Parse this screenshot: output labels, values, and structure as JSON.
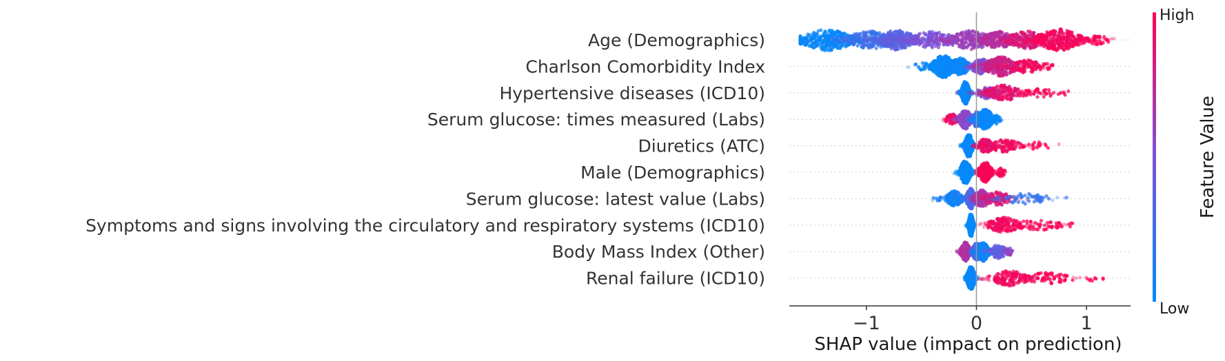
{
  "chart_data": {
    "type": "scatter",
    "subtype": "shap-beeswarm",
    "title": "",
    "xlabel": "SHAP value (impact on prediction)",
    "ylabel": "",
    "xlim": [
      -1.7,
      1.4
    ],
    "xticks": [
      -1,
      0,
      1
    ],
    "xtick_labels": [
      "−1",
      "0",
      "1"
    ],
    "zero_line": true,
    "grid": false,
    "colorbar": {
      "title": "Feature Value",
      "high_label": "High",
      "low_label": "Low",
      "low_color": "#008bfb",
      "mid_color": "#7c52d8",
      "high_color": "#ff0052"
    },
    "features": [
      {
        "name": "Age (Demographics)",
        "range": [
          -1.6,
          1.25
        ],
        "clusters": [
          {
            "center": -1.35,
            "spread": 0.17,
            "count": 320,
            "value": 0.03
          },
          {
            "center": -0.95,
            "spread": 0.17,
            "count": 230,
            "value": 0.22
          },
          {
            "center": -0.72,
            "spread": 0.12,
            "count": 280,
            "value": 0.36
          },
          {
            "center": -0.4,
            "spread": 0.16,
            "count": 180,
            "value": 0.5
          },
          {
            "center": -0.05,
            "spread": 0.15,
            "count": 240,
            "value": 0.62
          },
          {
            "center": 0.2,
            "spread": 0.1,
            "count": 200,
            "value": 0.72
          },
          {
            "center": 0.45,
            "spread": 0.12,
            "count": 220,
            "value": 0.85
          },
          {
            "center": 0.75,
            "spread": 0.14,
            "count": 340,
            "value": 0.96
          },
          {
            "center": 1.1,
            "spread": 0.07,
            "count": 40,
            "value": 1.0
          }
        ]
      },
      {
        "name": "Charlson Comorbidity Index",
        "range": [
          -0.62,
          0.72
        ],
        "clusters": [
          {
            "center": -0.3,
            "spread": 0.07,
            "count": 380,
            "value": 0.02
          },
          {
            "center": -0.15,
            "spread": 0.06,
            "count": 200,
            "value": 0.05
          },
          {
            "center": -0.48,
            "spread": 0.07,
            "count": 20,
            "value": 0.05
          },
          {
            "center": 0.05,
            "spread": 0.07,
            "count": 150,
            "value": 0.55
          },
          {
            "center": 0.22,
            "spread": 0.1,
            "count": 260,
            "value": 0.8
          },
          {
            "center": 0.45,
            "spread": 0.1,
            "count": 100,
            "value": 0.95
          },
          {
            "center": 0.62,
            "spread": 0.05,
            "count": 15,
            "value": 1.0
          }
        ]
      },
      {
        "name": "Hypertensive diseases (ICD10)",
        "range": [
          -0.18,
          0.88
        ],
        "clusters": [
          {
            "center": -0.1,
            "spread": 0.025,
            "count": 400,
            "value": 0.02
          },
          {
            "center": 0.1,
            "spread": 0.06,
            "count": 80,
            "value": 0.55
          },
          {
            "center": 0.25,
            "spread": 0.12,
            "count": 150,
            "value": 0.9
          },
          {
            "center": 0.55,
            "spread": 0.12,
            "count": 40,
            "value": 0.98
          },
          {
            "center": 0.8,
            "spread": 0.05,
            "count": 5,
            "value": 1.0
          }
        ]
      },
      {
        "name": "Serum glucose: times measured (Labs)",
        "range": [
          -0.3,
          0.25
        ],
        "clusters": [
          {
            "center": -0.22,
            "spread": 0.04,
            "count": 60,
            "value": 0.95
          },
          {
            "center": -0.1,
            "spread": 0.04,
            "count": 250,
            "value": 0.55
          },
          {
            "center": 0.0,
            "spread": 0.03,
            "count": 150,
            "value": 0.25
          },
          {
            "center": 0.08,
            "spread": 0.05,
            "count": 300,
            "value": 0.03
          },
          {
            "center": 0.18,
            "spread": 0.03,
            "count": 40,
            "value": 0.02
          }
        ]
      },
      {
        "name": "Diuretics (ATC)",
        "range": [
          -0.18,
          0.75
        ],
        "clusters": [
          {
            "center": -0.07,
            "spread": 0.025,
            "count": 450,
            "value": 0.02
          },
          {
            "center": 0.08,
            "spread": 0.05,
            "count": 120,
            "value": 0.9
          },
          {
            "center": 0.25,
            "spread": 0.1,
            "count": 100,
            "value": 0.95
          },
          {
            "center": 0.55,
            "spread": 0.1,
            "count": 20,
            "value": 1.0
          }
        ]
      },
      {
        "name": "Male (Demographics)",
        "range": [
          -0.22,
          0.28
        ],
        "clusters": [
          {
            "center": -0.1,
            "spread": 0.035,
            "count": 420,
            "value": 0.02
          },
          {
            "center": 0.08,
            "spread": 0.04,
            "count": 300,
            "value": 0.98
          },
          {
            "center": 0.22,
            "spread": 0.03,
            "count": 30,
            "value": 1.0
          }
        ]
      },
      {
        "name": "Serum glucose: latest value (Labs)",
        "range": [
          -0.4,
          0.82
        ],
        "clusters": [
          {
            "center": -0.2,
            "spread": 0.05,
            "count": 150,
            "value": 0.08
          },
          {
            "center": -0.05,
            "spread": 0.03,
            "count": 300,
            "value": 0.3
          },
          {
            "center": 0.05,
            "spread": 0.05,
            "count": 200,
            "value": 0.7
          },
          {
            "center": 0.2,
            "spread": 0.08,
            "count": 120,
            "value": 0.85
          },
          {
            "center": 0.45,
            "spread": 0.15,
            "count": 60,
            "value": 0.2
          },
          {
            "center": -0.35,
            "spread": 0.03,
            "count": 8,
            "value": 0.1
          }
        ]
      },
      {
        "name": "Symptoms and signs involving the circulatory and respiratory systems (ICD10)",
        "range": [
          -0.1,
          0.97
        ],
        "clusters": [
          {
            "center": -0.05,
            "spread": 0.015,
            "count": 450,
            "value": 0.02
          },
          {
            "center": 0.25,
            "spread": 0.1,
            "count": 150,
            "value": 0.95
          },
          {
            "center": 0.55,
            "spread": 0.15,
            "count": 60,
            "value": 1.0
          },
          {
            "center": 0.9,
            "spread": 0.05,
            "count": 6,
            "value": 1.0
          }
        ]
      },
      {
        "name": "Body Mass Index (Other)",
        "range": [
          -0.18,
          0.33
        ],
        "clusters": [
          {
            "center": -0.1,
            "spread": 0.03,
            "count": 250,
            "value": 0.7
          },
          {
            "center": 0.0,
            "spread": 0.03,
            "count": 200,
            "value": 0.3
          },
          {
            "center": 0.06,
            "spread": 0.04,
            "count": 250,
            "value": 0.05
          },
          {
            "center": 0.2,
            "spread": 0.05,
            "count": 120,
            "value": 0.4
          },
          {
            "center": 0.3,
            "spread": 0.02,
            "count": 30,
            "value": 0.6
          }
        ]
      },
      {
        "name": "Renal failure (ICD10)",
        "range": [
          -0.15,
          1.15
        ],
        "clusters": [
          {
            "center": -0.05,
            "spread": 0.025,
            "count": 450,
            "value": 0.02
          },
          {
            "center": 0.3,
            "spread": 0.12,
            "count": 150,
            "value": 0.95
          },
          {
            "center": 0.65,
            "spread": 0.15,
            "count": 70,
            "value": 1.0
          },
          {
            "center": 1.05,
            "spread": 0.07,
            "count": 8,
            "value": 1.0
          }
        ]
      }
    ]
  }
}
